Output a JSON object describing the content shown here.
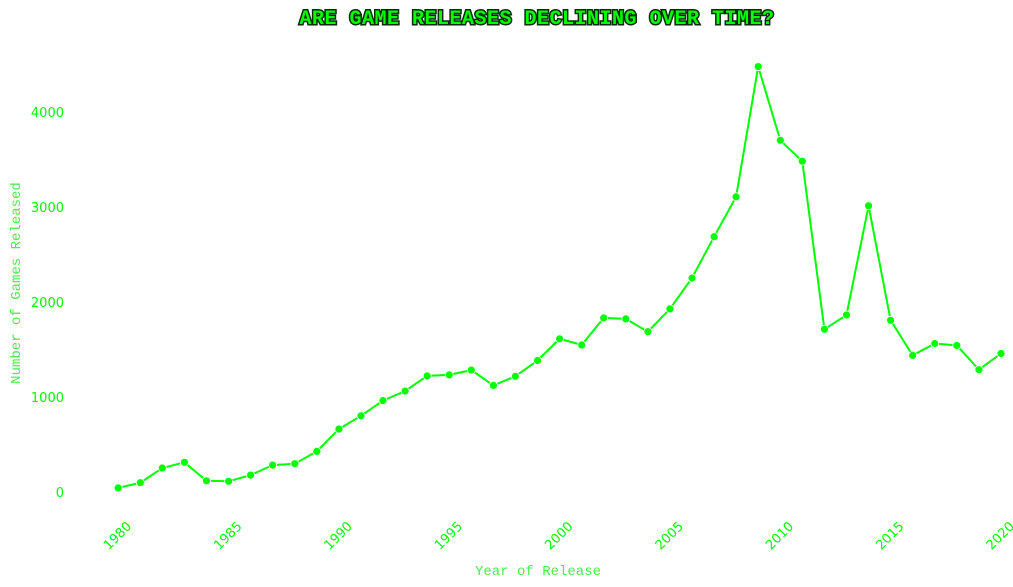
{
  "chart_data": {
    "type": "line",
    "title": "ARE GAME RELEASES DECLINING OVER TIME?",
    "xlabel": "Year of Release",
    "ylabel": "Number of Games Released",
    "x_ticks": [
      1980,
      1985,
      1990,
      1995,
      2000,
      2005,
      2010,
      2015,
      2020
    ],
    "y_ticks": [
      0,
      1000,
      2000,
      3000,
      4000
    ],
    "xlim": [
      1977,
      2020.5
    ],
    "ylim": [
      -150,
      4650
    ],
    "grid": false,
    "color": "#00ff00",
    "series": [
      {
        "x": [
          1980,
          1981,
          1982,
          1983,
          1984,
          1985,
          1986,
          1987,
          1988,
          1989,
          1990,
          1991,
          1992,
          1993,
          1994,
          1995,
          1996,
          1997,
          1998,
          1999,
          2000,
          2001,
          2002,
          2003,
          2004,
          2005,
          2006,
          2007,
          2008,
          2009,
          2010,
          2011,
          2012,
          2013,
          2014,
          2015,
          2016,
          2017,
          2018,
          2019,
          2020
        ],
        "y": [
          40,
          95,
          250,
          310,
          115,
          110,
          175,
          280,
          295,
          425,
          660,
          800,
          960,
          1060,
          1220,
          1230,
          1280,
          1120,
          1215,
          1380,
          1610,
          1545,
          1830,
          1820,
          1685,
          1925,
          2250,
          2685,
          3105,
          4475,
          3700,
          3480,
          1710,
          1860,
          3010,
          1805,
          1435,
          1560,
          1540,
          1285,
          1455
        ]
      }
    ]
  }
}
